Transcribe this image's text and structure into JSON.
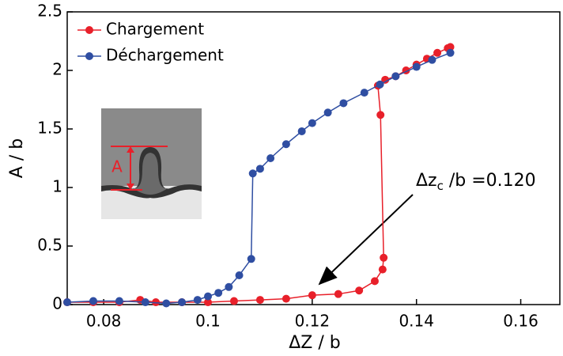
{
  "chart_data": {
    "type": "line",
    "x_label": "ΔZ / b",
    "y_label": "A / b",
    "xlim": [
      0.073,
      0.1675
    ],
    "ylim": [
      0,
      2.5
    ],
    "xticks": [
      0.08,
      0.1,
      0.12,
      0.14,
      0.16
    ],
    "yticks": [
      0,
      0.5,
      1,
      1.5,
      2,
      2.5
    ],
    "legend": "upper left",
    "series": [
      {
        "name": "Chargement",
        "color": "#e8202a",
        "x": [
          0.073,
          0.078,
          0.083,
          0.087,
          0.09,
          0.095,
          0.1,
          0.105,
          0.11,
          0.115,
          0.12,
          0.125,
          0.129,
          0.132,
          0.1335,
          0.1337,
          0.1331,
          0.1326,
          0.134,
          0.136,
          0.138,
          0.14,
          0.142,
          0.144,
          0.146,
          0.1465
        ],
        "values": [
          0.02,
          0.02,
          0.02,
          0.04,
          0.02,
          0.02,
          0.02,
          0.03,
          0.04,
          0.05,
          0.08,
          0.09,
          0.12,
          0.2,
          0.3,
          0.4,
          1.62,
          1.87,
          1.92,
          1.95,
          2.0,
          2.05,
          2.1,
          2.15,
          2.19,
          2.2
        ]
      },
      {
        "name": "Déchargement",
        "color": "#2f4ea2",
        "x": [
          0.073,
          0.078,
          0.083,
          0.088,
          0.092,
          0.095,
          0.098,
          0.1,
          0.102,
          0.104,
          0.106,
          0.1083,
          0.1086,
          0.11,
          0.112,
          0.115,
          0.118,
          0.12,
          0.123,
          0.126,
          0.13,
          0.133,
          0.136,
          0.14,
          0.143,
          0.1465
        ],
        "values": [
          0.02,
          0.03,
          0.03,
          0.02,
          0.01,
          0.02,
          0.04,
          0.07,
          0.1,
          0.15,
          0.25,
          0.39,
          1.12,
          1.16,
          1.25,
          1.37,
          1.48,
          1.55,
          1.64,
          1.72,
          1.81,
          1.88,
          1.95,
          2.03,
          2.09,
          2.15
        ]
      }
    ],
    "annotation": {
      "text": "Δz",
      "subscript": "c",
      "suffix": " /b =0.120"
    },
    "inset_label": "A"
  }
}
